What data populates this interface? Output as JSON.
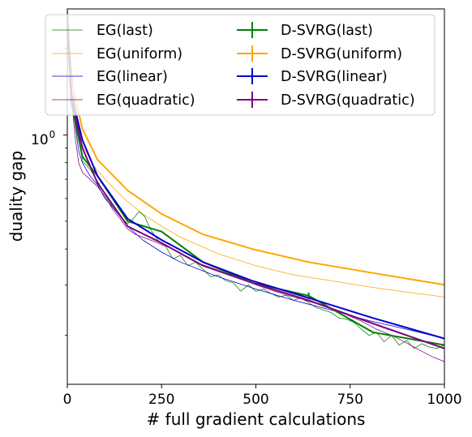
{
  "chart_data": {
    "type": "line",
    "xlabel": "# full gradient calculations",
    "ylabel": "duality gap",
    "xlim": [
      0,
      1000
    ],
    "ylim": [
      0.135,
      2.75
    ],
    "yscale": "log",
    "x_ticks": [
      0,
      250,
      500,
      750,
      1000
    ],
    "x_tick_labels": [
      "0",
      "250",
      "500",
      "750",
      "1000"
    ],
    "y_major_ticks": [
      1
    ],
    "y_tick_labels": [
      "10",
      "0"
    ],
    "y_minor_ticks": [
      0.2,
      0.3,
      0.4,
      0.5,
      0.6,
      0.7,
      0.8,
      0.9,
      2
    ],
    "legend_placement": "top",
    "series": [
      {
        "name": "EG(last)",
        "style": "thin",
        "color": "#008000",
        "x": [
          0,
          20,
          40,
          60,
          80,
          100,
          120,
          140,
          160,
          175,
          190,
          205,
          220,
          240,
          260,
          280,
          300,
          320,
          340,
          360,
          380,
          400,
          420,
          440,
          460,
          480,
          500,
          520,
          540,
          560,
          580,
          600,
          620,
          640,
          660,
          680,
          700,
          720,
          740,
          760,
          780,
          800,
          820,
          840,
          860,
          880,
          900,
          920,
          940,
          960,
          980,
          1000
        ],
        "y": [
          2.5,
          1.25,
          0.81,
          0.76,
          0.69,
          0.62,
          0.56,
          0.52,
          0.49,
          0.51,
          0.54,
          0.52,
          0.47,
          0.43,
          0.41,
          0.37,
          0.38,
          0.35,
          0.36,
          0.34,
          0.32,
          0.325,
          0.31,
          0.305,
          0.285,
          0.3,
          0.285,
          0.29,
          0.28,
          0.272,
          0.276,
          0.265,
          0.27,
          0.26,
          0.25,
          0.245,
          0.24,
          0.23,
          0.228,
          0.222,
          0.21,
          0.2,
          0.205,
          0.19,
          0.2,
          0.185,
          0.192,
          0.18,
          0.187,
          0.182,
          0.18,
          0.185
        ]
      },
      {
        "name": "EG(uniform)",
        "style": "thin",
        "color": "#FFA500",
        "x": [
          0,
          10,
          20,
          40,
          70,
          100,
          150,
          200,
          250,
          300,
          400,
          500,
          600,
          700,
          800,
          900,
          1000
        ],
        "y": [
          2.6,
          1.5,
          1.15,
          0.92,
          0.78,
          0.7,
          0.6,
          0.53,
          0.48,
          0.44,
          0.385,
          0.35,
          0.325,
          0.31,
          0.295,
          0.283,
          0.272
        ]
      },
      {
        "name": "EG(linear)",
        "style": "thin",
        "color": "#0000CD",
        "x": [
          0,
          10,
          20,
          30,
          40,
          60,
          80,
          100,
          130,
          160,
          200,
          250,
          300,
          400,
          500,
          600,
          700,
          800,
          900,
          1000
        ],
        "y": [
          2.4,
          1.5,
          1.1,
          0.88,
          0.8,
          0.72,
          0.67,
          0.6,
          0.54,
          0.48,
          0.43,
          0.39,
          0.36,
          0.32,
          0.29,
          0.265,
          0.245,
          0.225,
          0.21,
          0.195
        ]
      },
      {
        "name": "EG(quadratic)",
        "style": "thin",
        "color": "#800080",
        "x": [
          0,
          10,
          20,
          30,
          40,
          60,
          80,
          100,
          120,
          140,
          160,
          180,
          200,
          220,
          240,
          260,
          280,
          300,
          340,
          380,
          420,
          460,
          500,
          540,
          580,
          620,
          660,
          700,
          740,
          780,
          820,
          860,
          900,
          940,
          970,
          1000
        ],
        "y": [
          2.3,
          1.4,
          1.0,
          0.8,
          0.74,
          0.7,
          0.66,
          0.61,
          0.55,
          0.51,
          0.47,
          0.45,
          0.44,
          0.43,
          0.42,
          0.41,
          0.4,
          0.385,
          0.36,
          0.345,
          0.33,
          0.315,
          0.3,
          0.288,
          0.277,
          0.268,
          0.258,
          0.247,
          0.236,
          0.224,
          0.21,
          0.2,
          0.188,
          0.176,
          0.168,
          0.162
        ]
      },
      {
        "name": "D-SVRG(last)",
        "style": "thick",
        "color": "#008000",
        "x": [
          0,
          10,
          40,
          80,
          160,
          250,
          360,
          490,
          640,
          810,
          1000
        ],
        "y": [
          2.7,
          1.3,
          0.84,
          0.72,
          0.5,
          0.46,
          0.36,
          0.305,
          0.275,
          0.205,
          0.185
        ],
        "errorbar_at": [
          640
        ],
        "errorbar_low": [
          0.268
        ],
        "errorbar_high": [
          0.282
        ]
      },
      {
        "name": "D-SVRG(uniform)",
        "style": "thick",
        "color": "#FFA500",
        "x": [
          0,
          10,
          40,
          80,
          160,
          250,
          360,
          490,
          640,
          810,
          1000
        ],
        "y": [
          2.7,
          1.55,
          1.05,
          0.82,
          0.64,
          0.53,
          0.45,
          0.4,
          0.36,
          0.33,
          0.3
        ]
      },
      {
        "name": "D-SVRG(linear)",
        "style": "thick",
        "color": "#0000CD",
        "x": [
          0,
          10,
          40,
          80,
          160,
          250,
          360,
          490,
          640,
          810,
          1000
        ],
        "y": [
          2.6,
          1.4,
          0.96,
          0.72,
          0.51,
          0.43,
          0.36,
          0.31,
          0.27,
          0.23,
          0.195
        ]
      },
      {
        "name": "D-SVRG(quadratic)",
        "style": "thick",
        "color": "#800080",
        "x": [
          0,
          10,
          40,
          80,
          160,
          250,
          360,
          490,
          640,
          810,
          1000
        ],
        "y": [
          2.5,
          1.35,
          0.9,
          0.68,
          0.48,
          0.42,
          0.35,
          0.305,
          0.265,
          0.22,
          0.18
        ]
      }
    ]
  }
}
